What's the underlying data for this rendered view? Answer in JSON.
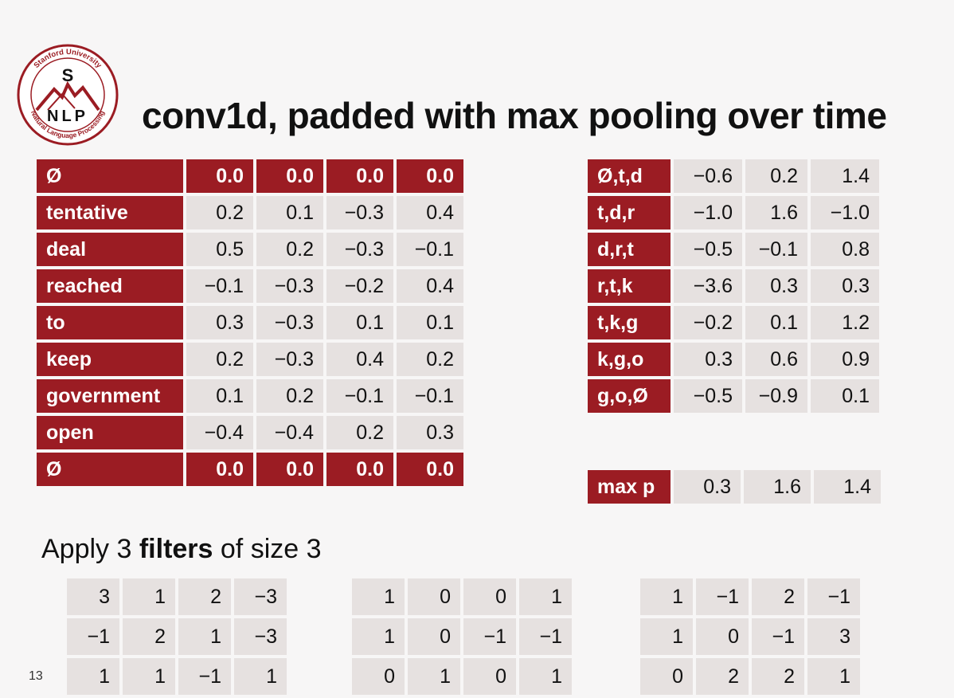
{
  "title": "conv1d, padded with max pooling over time",
  "logo": {
    "top_text": "Stanford University",
    "bottom_text": "Natural Language Processing",
    "letters_top": "S",
    "letters_bottom": "NLP",
    "color": "#9b1c23"
  },
  "embeddings": [
    {
      "label": "Ø",
      "values": [
        "0.0",
        "0.0",
        "0.0",
        "0.0"
      ],
      "pad": true
    },
    {
      "label": "tentative",
      "values": [
        "0.2",
        "0.1",
        "−0.3",
        "0.4"
      ]
    },
    {
      "label": "deal",
      "values": [
        "0.5",
        "0.2",
        "−0.3",
        "−0.1"
      ]
    },
    {
      "label": "reached",
      "values": [
        "−0.1",
        "−0.3",
        "−0.2",
        "0.4"
      ]
    },
    {
      "label": "to",
      "values": [
        "0.3",
        "−0.3",
        "0.1",
        "0.1"
      ]
    },
    {
      "label": "keep",
      "values": [
        "0.2",
        "−0.3",
        "0.4",
        "0.2"
      ]
    },
    {
      "label": "government",
      "values": [
        "0.1",
        "0.2",
        "−0.1",
        "−0.1"
      ]
    },
    {
      "label": "open",
      "values": [
        "−0.4",
        "−0.4",
        "0.2",
        "0.3"
      ]
    },
    {
      "label": "Ø",
      "values": [
        "0.0",
        "0.0",
        "0.0",
        "0.0"
      ],
      "pad": true
    }
  ],
  "conv_output": [
    {
      "label": "Ø,t,d",
      "values": [
        "−0.6",
        "0.2",
        "1.4"
      ]
    },
    {
      "label": "t,d,r",
      "values": [
        "−1.0",
        "1.6",
        "−1.0"
      ]
    },
    {
      "label": "d,r,t",
      "values": [
        "−0.5",
        "−0.1",
        "0.8"
      ]
    },
    {
      "label": "r,t,k",
      "values": [
        "−3.6",
        "0.3",
        "0.3"
      ]
    },
    {
      "label": "t,k,g",
      "values": [
        "−0.2",
        "0.1",
        "1.2"
      ]
    },
    {
      "label": "k,g,o",
      "values": [
        "0.3",
        "0.6",
        "0.9"
      ]
    },
    {
      "label": "g,o,Ø",
      "values": [
        "−0.5",
        "−0.9",
        "0.1"
      ]
    }
  ],
  "max_pool": {
    "label": "max p",
    "values": [
      "0.3",
      "1.6",
      "1.4"
    ]
  },
  "caption": {
    "prefix": "Apply 3 ",
    "bold": "filters",
    "suffix": " of size 3"
  },
  "filters": [
    [
      [
        "3",
        "1",
        "2",
        "−3"
      ],
      [
        "−1",
        "2",
        "1",
        "−3"
      ],
      [
        "1",
        "1",
        "−1",
        "1"
      ]
    ],
    [
      [
        "1",
        "0",
        "0",
        "1"
      ],
      [
        "1",
        "0",
        "−1",
        "−1"
      ],
      [
        "0",
        "1",
        "0",
        "1"
      ]
    ],
    [
      [
        "1",
        "−1",
        "2",
        "−1"
      ],
      [
        "1",
        "0",
        "−1",
        "3"
      ],
      [
        "0",
        "2",
        "2",
        "1"
      ]
    ]
  ],
  "page_number": "13",
  "colors": {
    "accent": "#9b1c23",
    "cell": "#e6e1e0",
    "background": "#f7f6f6"
  }
}
